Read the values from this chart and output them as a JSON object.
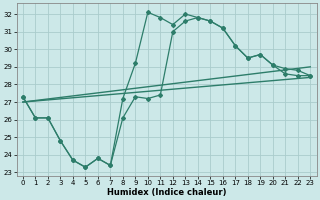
{
  "xlabel": "Humidex (Indice chaleur)",
  "background_color": "#cce8e8",
  "grid_color": "#aacccc",
  "line_color": "#2d7d6a",
  "xlim": [
    -0.5,
    23.5
  ],
  "ylim": [
    22.8,
    32.6
  ],
  "yticks": [
    23,
    24,
    25,
    26,
    27,
    28,
    29,
    30,
    31,
    32
  ],
  "xticks": [
    0,
    1,
    2,
    3,
    4,
    5,
    6,
    7,
    8,
    9,
    10,
    11,
    12,
    13,
    14,
    15,
    16,
    17,
    18,
    19,
    20,
    21,
    22,
    23
  ],
  "curve_upper_x": [
    0,
    1,
    2,
    3,
    4,
    5,
    6,
    7,
    8,
    9,
    10,
    11,
    12,
    13,
    14,
    15,
    16,
    17,
    18,
    19,
    20,
    21,
    22,
    23
  ],
  "curve_upper_y": [
    27.3,
    26.1,
    26.1,
    24.8,
    23.7,
    23.3,
    23.8,
    23.4,
    27.2,
    29.2,
    32.1,
    31.8,
    31.4,
    32.0,
    31.8,
    31.6,
    31.2,
    30.2,
    29.5,
    29.7,
    29.1,
    28.9,
    28.8,
    28.5
  ],
  "curve_lower_x": [
    0,
    1,
    2,
    3,
    4,
    5,
    6,
    7,
    8,
    9,
    10,
    11,
    12,
    13,
    14,
    15,
    16,
    17,
    18,
    19,
    20,
    21,
    22,
    23
  ],
  "curve_lower_y": [
    27.3,
    26.1,
    26.1,
    24.8,
    23.7,
    23.3,
    23.8,
    23.4,
    26.1,
    27.3,
    27.2,
    27.4,
    31.0,
    31.6,
    31.8,
    31.6,
    31.2,
    30.2,
    29.5,
    29.7,
    29.1,
    28.6,
    28.5,
    28.5
  ],
  "trend1_x": [
    0,
    23
  ],
  "trend1_y": [
    27.0,
    29.0
  ],
  "trend2_x": [
    0,
    23
  ],
  "trend2_y": [
    27.0,
    28.4
  ]
}
